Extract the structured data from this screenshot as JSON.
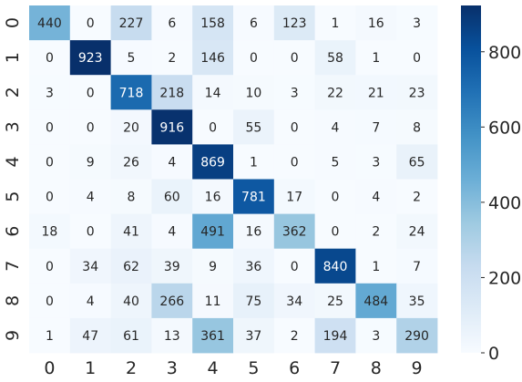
{
  "chart_data": {
    "type": "heatmap",
    "title": "",
    "xlabel": "",
    "ylabel": "",
    "x_categories": [
      "0",
      "1",
      "2",
      "3",
      "4",
      "5",
      "6",
      "7",
      "8",
      "9"
    ],
    "y_categories": [
      "0",
      "1",
      "2",
      "3",
      "4",
      "5",
      "6",
      "7",
      "8",
      "9"
    ],
    "values": [
      [
        440,
        0,
        227,
        6,
        158,
        6,
        123,
        1,
        16,
        3
      ],
      [
        0,
        923,
        5,
        2,
        146,
        0,
        0,
        58,
        1,
        0
      ],
      [
        3,
        0,
        718,
        218,
        14,
        10,
        3,
        22,
        21,
        23
      ],
      [
        0,
        0,
        20,
        916,
        0,
        55,
        0,
        4,
        7,
        8
      ],
      [
        0,
        9,
        26,
        4,
        869,
        1,
        0,
        5,
        3,
        65
      ],
      [
        0,
        4,
        8,
        60,
        16,
        781,
        17,
        0,
        4,
        2
      ],
      [
        18,
        0,
        41,
        4,
        491,
        16,
        362,
        0,
        2,
        24
      ],
      [
        0,
        34,
        62,
        39,
        9,
        36,
        0,
        840,
        1,
        7
      ],
      [
        0,
        4,
        40,
        266,
        11,
        75,
        34,
        25,
        484,
        35
      ],
      [
        1,
        47,
        61,
        13,
        361,
        37,
        2,
        194,
        3,
        290
      ]
    ],
    "colormap": "Blues",
    "colorbar": {
      "min": 0,
      "max": 923,
      "ticks": [
        0,
        200,
        400,
        600,
        800
      ],
      "tick_labels": [
        "0",
        "200",
        "400",
        "600",
        "800"
      ]
    },
    "annotations": true,
    "grid": false,
    "legend": "colorbar-right"
  }
}
